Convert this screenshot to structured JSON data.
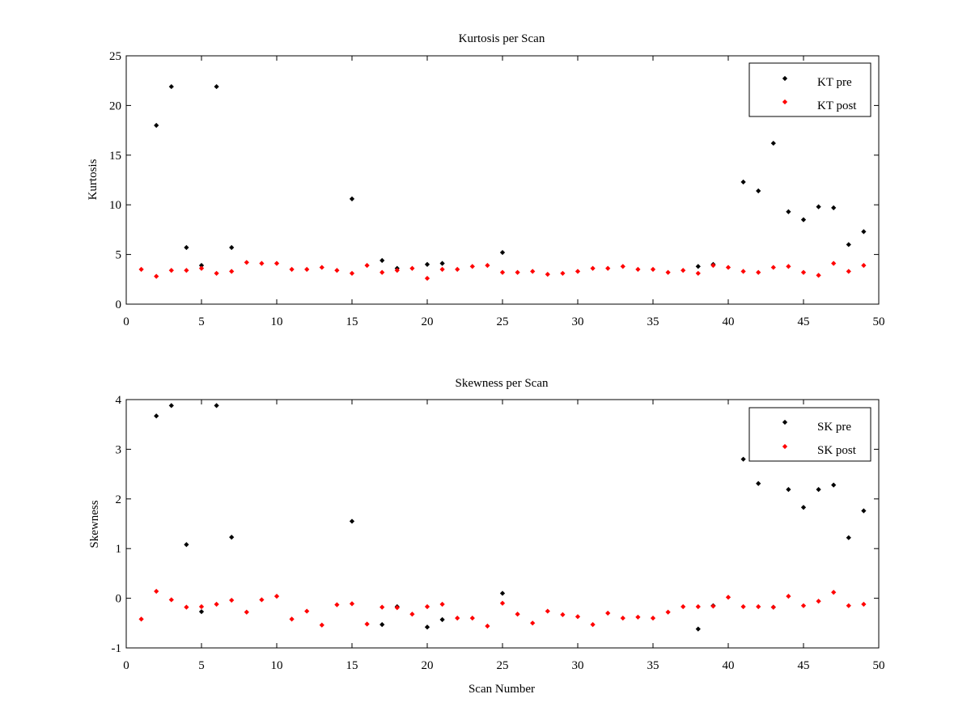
{
  "colors": {
    "pre": "#000000",
    "post": "#ff0000",
    "axis": "#000000",
    "background": "#ffffff"
  },
  "chart_data": [
    {
      "type": "scatter",
      "title": "Kurtosis per Scan",
      "xlabel": "",
      "ylabel": "Kurtosis",
      "xlim": [
        0,
        50
      ],
      "ylim": [
        0,
        25
      ],
      "xticks": [
        0,
        5,
        10,
        15,
        20,
        25,
        30,
        35,
        40,
        45,
        50
      ],
      "yticks": [
        0,
        5,
        10,
        15,
        20,
        25
      ],
      "grid": false,
      "legend_position": "top-right",
      "series": [
        {
          "name": "KT pre",
          "color": "#000000",
          "points": [
            [
              2,
              18.0
            ],
            [
              3,
              21.9
            ],
            [
              4,
              5.7
            ],
            [
              5,
              3.9
            ],
            [
              6,
              21.9
            ],
            [
              7,
              5.7
            ],
            [
              15,
              10.6
            ],
            [
              17,
              4.4
            ],
            [
              18,
              3.6
            ],
            [
              20,
              4.0
            ],
            [
              21,
              4.1
            ],
            [
              25,
              5.2
            ],
            [
              38,
              3.8
            ],
            [
              39,
              4.0
            ],
            [
              41,
              12.3
            ],
            [
              42,
              11.4
            ],
            [
              43,
              16.2
            ],
            [
              44,
              9.3
            ],
            [
              45,
              8.5
            ],
            [
              46,
              9.8
            ],
            [
              47,
              9.7
            ],
            [
              48,
              6.0
            ],
            [
              49,
              7.3
            ]
          ]
        },
        {
          "name": "KT post",
          "color": "#ff0000",
          "points": [
            [
              1,
              3.5
            ],
            [
              2,
              2.8
            ],
            [
              3,
              3.4
            ],
            [
              4,
              3.4
            ],
            [
              5,
              3.6
            ],
            [
              6,
              3.1
            ],
            [
              7,
              3.3
            ],
            [
              8,
              4.2
            ],
            [
              9,
              4.1
            ],
            [
              10,
              4.1
            ],
            [
              11,
              3.5
            ],
            [
              12,
              3.5
            ],
            [
              13,
              3.7
            ],
            [
              14,
              3.4
            ],
            [
              15,
              3.1
            ],
            [
              16,
              3.9
            ],
            [
              17,
              3.2
            ],
            [
              18,
              3.4
            ],
            [
              19,
              3.6
            ],
            [
              20,
              2.6
            ],
            [
              21,
              3.5
            ],
            [
              22,
              3.5
            ],
            [
              23,
              3.8
            ],
            [
              24,
              3.9
            ],
            [
              25,
              3.2
            ],
            [
              26,
              3.2
            ],
            [
              27,
              3.3
            ],
            [
              28,
              3.0
            ],
            [
              29,
              3.1
            ],
            [
              30,
              3.3
            ],
            [
              31,
              3.6
            ],
            [
              32,
              3.6
            ],
            [
              33,
              3.8
            ],
            [
              34,
              3.5
            ],
            [
              35,
              3.5
            ],
            [
              36,
              3.2
            ],
            [
              37,
              3.4
            ],
            [
              38,
              3.1
            ],
            [
              39,
              3.9
            ],
            [
              40,
              3.7
            ],
            [
              41,
              3.3
            ],
            [
              42,
              3.2
            ],
            [
              43,
              3.7
            ],
            [
              44,
              3.8
            ],
            [
              45,
              3.2
            ],
            [
              46,
              2.9
            ],
            [
              47,
              4.1
            ],
            [
              48,
              3.3
            ],
            [
              49,
              3.9
            ]
          ]
        }
      ]
    },
    {
      "type": "scatter",
      "title": "Skewness per Scan",
      "xlabel": "Scan Number",
      "ylabel": "Skewness",
      "xlim": [
        0,
        50
      ],
      "ylim": [
        -1,
        4
      ],
      "xticks": [
        0,
        5,
        10,
        15,
        20,
        25,
        30,
        35,
        40,
        45,
        50
      ],
      "yticks": [
        -1,
        0,
        1,
        2,
        3,
        4
      ],
      "grid": false,
      "legend_position": "top-right",
      "series": [
        {
          "name": "SK pre",
          "color": "#000000",
          "points": [
            [
              2,
              3.67
            ],
            [
              3,
              3.88
            ],
            [
              4,
              1.08
            ],
            [
              5,
              -0.27
            ],
            [
              6,
              3.88
            ],
            [
              7,
              1.23
            ],
            [
              15,
              1.55
            ],
            [
              17,
              -0.53
            ],
            [
              18,
              -0.17
            ],
            [
              20,
              -0.58
            ],
            [
              21,
              -0.43
            ],
            [
              25,
              0.1
            ],
            [
              38,
              -0.62
            ],
            [
              39,
              -0.15
            ],
            [
              41,
              2.8
            ],
            [
              42,
              2.31
            ],
            [
              43,
              -0.18
            ],
            [
              44,
              2.19
            ],
            [
              45,
              1.83
            ],
            [
              46,
              2.19
            ],
            [
              47,
              2.28
            ],
            [
              48,
              1.22
            ],
            [
              49,
              1.76
            ]
          ]
        },
        {
          "name": "SK post",
          "color": "#ff0000",
          "points": [
            [
              1,
              -0.42
            ],
            [
              2,
              0.14
            ],
            [
              3,
              -0.03
            ],
            [
              4,
              -0.18
            ],
            [
              5,
              -0.17
            ],
            [
              6,
              -0.12
            ],
            [
              7,
              -0.04
            ],
            [
              8,
              -0.28
            ],
            [
              9,
              -0.03
            ],
            [
              10,
              0.04
            ],
            [
              11,
              -0.42
            ],
            [
              12,
              -0.26
            ],
            [
              13,
              -0.54
            ],
            [
              14,
              -0.13
            ],
            [
              15,
              -0.11
            ],
            [
              16,
              -0.52
            ],
            [
              17,
              -0.18
            ],
            [
              18,
              -0.19
            ],
            [
              19,
              -0.32
            ],
            [
              20,
              -0.17
            ],
            [
              21,
              -0.12
            ],
            [
              22,
              -0.4
            ],
            [
              23,
              -0.4
            ],
            [
              24,
              -0.56
            ],
            [
              25,
              -0.1
            ],
            [
              26,
              -0.32
            ],
            [
              27,
              -0.5
            ],
            [
              28,
              -0.26
            ],
            [
              29,
              -0.33
            ],
            [
              30,
              -0.37
            ],
            [
              31,
              -0.53
            ],
            [
              32,
              -0.3
            ],
            [
              33,
              -0.4
            ],
            [
              34,
              -0.38
            ],
            [
              35,
              -0.4
            ],
            [
              36,
              -0.28
            ],
            [
              37,
              -0.17
            ],
            [
              38,
              -0.17
            ],
            [
              39,
              -0.16
            ],
            [
              40,
              0.02
            ],
            [
              41,
              -0.17
            ],
            [
              42,
              -0.17
            ],
            [
              43,
              -0.18
            ],
            [
              44,
              0.04
            ],
            [
              45,
              -0.15
            ],
            [
              46,
              -0.06
            ],
            [
              47,
              0.12
            ],
            [
              48,
              -0.15
            ],
            [
              49,
              -0.12
            ]
          ]
        }
      ]
    }
  ]
}
